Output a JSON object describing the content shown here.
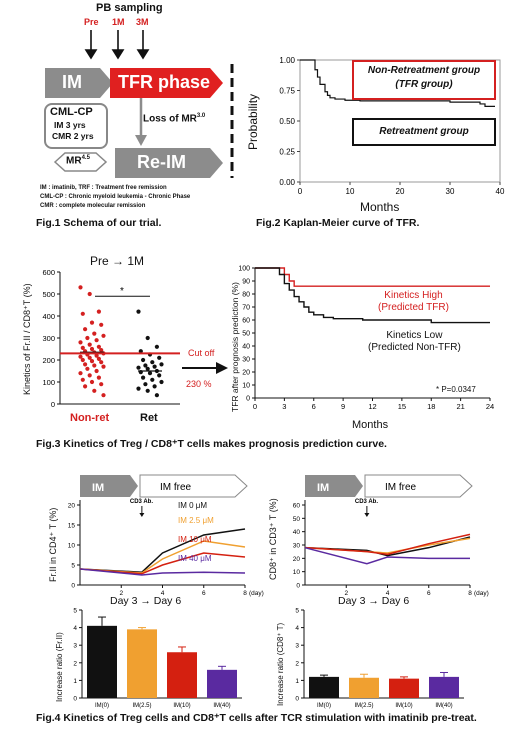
{
  "fig1": {
    "pb_sampling": "PB sampling",
    "times": [
      "Pre",
      "1M",
      "3M"
    ],
    "im": "IM",
    "tfr_phase": "TFR phase",
    "loss": "Loss of MR",
    "loss_sup": "3.0",
    "reim": "Re-IM",
    "cml_title": "CML-CP",
    "cml_line1": "IM 3 yrs",
    "cml_line2": "CMR 2 yrs",
    "mr": "MR",
    "mr_sup": "4.5",
    "legend": [
      "IM : imatinib, TRF : Treatment free remission",
      "CML-CP : Chronic myeloid leukemia - Chronic Phase",
      "CMR : complete molecular remission"
    ],
    "caption": "Fig.1 Schema of our trial.",
    "colors": {
      "arrow_gray": "#8c8c8c",
      "tfr_red": "#e02020",
      "red_text": "#d42020"
    }
  },
  "fig2": {
    "caption": "Fig.2 Kaplan-Meier curve of TFR.",
    "ylabel": "Probability",
    "xlabel": "Months",
    "yticks": [
      "1.00",
      "0.75",
      "0.50",
      "0.25",
      "0.00"
    ],
    "xticks": [
      "0",
      "10",
      "20",
      "30",
      "40"
    ],
    "box1_line1": "Non-Retreatment group",
    "box1_line2": "(TFR group)",
    "box2": "Retreatment group"
  },
  "fig3": {
    "caption": "Fig.3 Kinetics of Treg / CD8⁺T cells makes prognosis prediction curve.",
    "scatter_title": "Pre → 1M",
    "scatter_ylabel": "Kinetics of Fr.II / CD8⁺T (%)",
    "scatter_yticks": [
      "0",
      "100",
      "200",
      "300",
      "400",
      "500",
      "600"
    ],
    "scatter_groups": [
      "Non-ret",
      "Ret"
    ],
    "sig": "*",
    "cutoff_label": "Cut off",
    "cutoff_value": "230 %",
    "km_ylabel": "TFR after prognosis prediction (%)",
    "km_xlabel": "Months",
    "km_yticks": [
      "0",
      "10",
      "20",
      "30",
      "40",
      "50",
      "60",
      "70",
      "80",
      "90",
      "100"
    ],
    "km_xticks": [
      "0",
      "3",
      "6",
      "9",
      "12",
      "15",
      "18",
      "21",
      "24"
    ],
    "high_line1": "Kinetics High",
    "high_line2": "(Predicted TFR)",
    "low_line1": "Kinetics Low",
    "low_line2": "(Predicted Non-TFR)",
    "pval": "* P=0.0347"
  },
  "fig4": {
    "caption": "Fig.4 Kinetics of Treg cells and CD8⁺T cells after TCR stimulation with imatinib pre-treat.",
    "left_ylabel": "Fr.II in CD4⁺ T (%)",
    "right_ylabel": "CD8⁺ in CD3⁺ T (%)",
    "left_yticks": [
      "0",
      "5",
      "10",
      "15",
      "20"
    ],
    "right_yticks": [
      "0",
      "10",
      "20",
      "30",
      "40",
      "50",
      "60"
    ],
    "xticks": [
      "2",
      "4",
      "6",
      "8"
    ],
    "day_label": "(day)",
    "im": "IM",
    "im_free": "IM free",
    "cd3": "CD3 Ab.",
    "series_labels": [
      "IM 0 μM",
      "IM 2.5 μM",
      "IM 10 μM",
      "IM 40 μM"
    ],
    "series_colors": [
      "#111111",
      "#f0a030",
      "#d42010",
      "#5a2aa0"
    ],
    "day_range": "Day 3 → Day 6",
    "bar_ylabel_left": "Increase ratio (Fr.II)",
    "bar_ylabel_right": "Increase ratio (CD8⁺ T)",
    "bar_categories": [
      "IM(0)",
      "IM(2.5)",
      "IM(10)",
      "IM(40)"
    ],
    "bar_yticks": [
      "0",
      "1",
      "2",
      "3",
      "4",
      "5"
    ]
  },
  "chart_data": [
    {
      "type": "line",
      "name": "fig2",
      "xlabel": "Months",
      "ylabel": "Probability",
      "xlim": [
        0,
        40
      ],
      "ylim": [
        0,
        1
      ],
      "x": [
        0,
        2,
        3,
        3.5,
        4,
        5,
        5.5,
        6,
        7,
        9,
        12,
        25,
        30,
        35,
        36,
        37,
        39
      ],
      "y": [
        1.0,
        1.0,
        0.92,
        0.86,
        0.8,
        0.74,
        0.71,
        0.69,
        0.68,
        0.67,
        0.665,
        0.665,
        0.655,
        0.655,
        0.64,
        0.62,
        0.62
      ]
    },
    {
      "type": "scatter",
      "name": "fig3-scatter",
      "title": "Pre → 1M",
      "categories": [
        "Non-ret",
        "Ret"
      ],
      "ylim": [
        0,
        600
      ],
      "series": [
        {
          "values": [
            530,
            500,
            420,
            410,
            370,
            360,
            340,
            320,
            310,
            300,
            290,
            280,
            270,
            260,
            255,
            250,
            245,
            240,
            235,
            230,
            225,
            220,
            215,
            210,
            205,
            200,
            195,
            190,
            180,
            175,
            170,
            160,
            150,
            140,
            130,
            120,
            110,
            100,
            90,
            80,
            60,
            40
          ]
        },
        {
          "values": [
            420,
            300,
            260,
            240,
            225,
            210,
            200,
            190,
            180,
            175,
            170,
            165,
            160,
            150,
            145,
            140,
            130,
            120,
            110,
            100,
            90,
            80,
            70,
            60,
            40
          ]
        }
      ],
      "means": [
        235,
        150
      ],
      "cutoff": 230
    },
    {
      "type": "line",
      "name": "fig3-km",
      "xlabel": "Months",
      "ylabel": "TFR after prognosis prediction (%)",
      "xlim": [
        0,
        24
      ],
      "ylim": [
        0,
        100
      ],
      "series": [
        {
          "name": "Kinetics High",
          "x": [
            0,
            2.5,
            3,
            3.5,
            4,
            24
          ],
          "y": [
            100,
            100,
            95,
            90,
            86,
            86
          ]
        },
        {
          "name": "Kinetics Low",
          "x": [
            0,
            2,
            2.5,
            3,
            3.5,
            4,
            4.5,
            5,
            5.5,
            6,
            7,
            8,
            9,
            11,
            15,
            18,
            24
          ],
          "y": [
            100,
            100,
            95,
            88,
            83,
            78,
            74,
            70,
            66,
            64,
            62,
            61,
            61,
            60,
            60,
            58,
            58
          ]
        }
      ]
    },
    {
      "type": "line",
      "name": "fig4-left",
      "xlim": [
        0,
        8
      ],
      "ylim": [
        0,
        20
      ],
      "x": [
        0,
        3,
        4,
        6,
        8
      ],
      "series": [
        {
          "name": "IM 0 μM",
          "values": [
            4,
            3.2,
            8,
            12.5,
            14
          ]
        },
        {
          "name": "IM 2.5 μM",
          "values": [
            4,
            3.0,
            6.5,
            11,
            9.5
          ]
        },
        {
          "name": "IM 10 μM",
          "values": [
            4,
            2.8,
            5,
            8,
            7
          ]
        },
        {
          "name": "IM 40 μM",
          "values": [
            4,
            2.5,
            3,
            3.2,
            3
          ]
        }
      ]
    },
    {
      "type": "line",
      "name": "fig4-right",
      "xlim": [
        0,
        8
      ],
      "ylim": [
        0,
        60
      ],
      "x": [
        0,
        3,
        4,
        6,
        8
      ],
      "series": [
        {
          "name": "IM 0 μM",
          "values": [
            28,
            26,
            22,
            28,
            36
          ]
        },
        {
          "name": "IM 2.5 μM",
          "values": [
            28,
            25,
            24,
            30,
            35
          ]
        },
        {
          "name": "IM 10 μM",
          "values": [
            28,
            25,
            23,
            31,
            38
          ]
        },
        {
          "name": "IM 40 μM",
          "values": [
            28,
            16,
            21,
            20,
            20
          ]
        }
      ]
    },
    {
      "type": "bar",
      "name": "fig4-bar-left",
      "ylabel": "Increase ratio (Fr.II)",
      "categories": [
        "IM(0)",
        "IM(2.5)",
        "IM(10)",
        "IM(40)"
      ],
      "values": [
        4.1,
        3.9,
        2.6,
        1.6
      ],
      "errors": [
        0.5,
        0.1,
        0.3,
        0.2
      ],
      "ylim": [
        0,
        5
      ]
    },
    {
      "type": "bar",
      "name": "fig4-bar-right",
      "ylabel": "Increase ratio (CD8⁺ T)",
      "categories": [
        "IM(0)",
        "IM(2.5)",
        "IM(10)",
        "IM(40)"
      ],
      "values": [
        1.2,
        1.15,
        1.1,
        1.2
      ],
      "errors": [
        0.1,
        0.2,
        0.1,
        0.25
      ],
      "ylim": [
        0,
        5
      ]
    }
  ]
}
